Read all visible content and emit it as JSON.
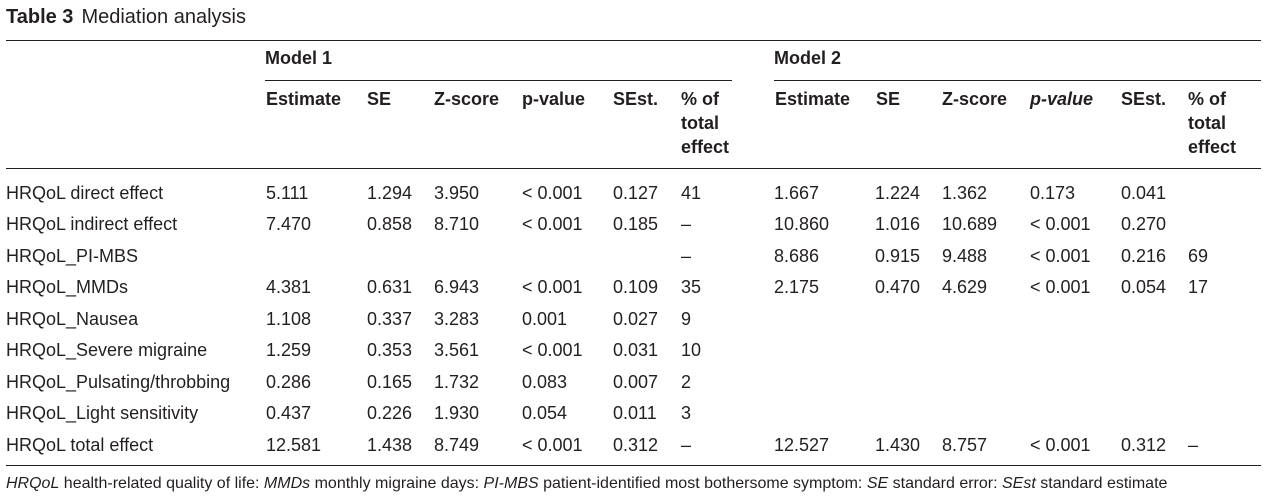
{
  "title": {
    "label": "Table 3",
    "name": "Mediation analysis"
  },
  "models": [
    "Model 1",
    "Model 2"
  ],
  "columns": {
    "estimate": "Estimate",
    "se": "SE",
    "z": "Z-score",
    "p1": "p-value",
    "p2": "p-value",
    "sest": "SEst.",
    "pct": "% of total effect"
  },
  "rows": [
    {
      "label": "HRQoL direct effect",
      "m1": [
        "5.111",
        "1.294",
        "3.950",
        "< 0.001",
        "0.127",
        "41"
      ],
      "m2": [
        "1.667",
        "1.224",
        "1.362",
        "0.173",
        "0.041",
        ""
      ]
    },
    {
      "label": "HRQoL indirect effect",
      "m1": [
        "7.470",
        "0.858",
        "8.710",
        "< 0.001",
        "0.185",
        "–"
      ],
      "m2": [
        "10.860",
        "1.016",
        "10.689",
        "< 0.001",
        "0.270",
        ""
      ]
    },
    {
      "label": "HRQoL_PI-MBS",
      "m1": [
        "",
        "",
        "",
        "",
        "",
        "–"
      ],
      "m2": [
        "8.686",
        "0.915",
        "9.488",
        "< 0.001",
        "0.216",
        "69"
      ]
    },
    {
      "label": "HRQoL_MMDs",
      "m1": [
        "4.381",
        "0.631",
        "6.943",
        "< 0.001",
        "0.109",
        "35"
      ],
      "m2": [
        "2.175",
        "0.470",
        "4.629",
        "< 0.001",
        "0.054",
        "17"
      ]
    },
    {
      "label": "HRQoL_Nausea",
      "m1": [
        "1.108",
        "0.337",
        "3.283",
        "0.001",
        "0.027",
        "9"
      ],
      "m2": [
        "",
        "",
        "",
        "",
        "",
        ""
      ]
    },
    {
      "label": "HRQoL_Severe migraine",
      "m1": [
        "1.259",
        "0.353",
        "3.561",
        "< 0.001",
        "0.031",
        "10"
      ],
      "m2": [
        "",
        "",
        "",
        "",
        "",
        ""
      ]
    },
    {
      "label": "HRQoL_Pulsating/throbbing",
      "m1": [
        "0.286",
        "0.165",
        "1.732",
        "0.083",
        "0.007",
        "2"
      ],
      "m2": [
        "",
        "",
        "",
        "",
        "",
        ""
      ]
    },
    {
      "label": "HRQoL_Light sensitivity",
      "m1": [
        "0.437",
        "0.226",
        "1.930",
        "0.054",
        "0.011",
        "3"
      ],
      "m2": [
        "",
        "",
        "",
        "",
        "",
        ""
      ]
    },
    {
      "label": "HRQoL total effect",
      "m1": [
        "12.581",
        "1.438",
        "8.749",
        "< 0.001",
        "0.312",
        "–"
      ],
      "m2": [
        "12.527",
        "1.430",
        "8.757",
        "< 0.001",
        "0.312",
        "–"
      ]
    }
  ],
  "footnote": [
    {
      "text": "HRQoL",
      "italic": true
    },
    {
      "text": " health-related quality of life: ",
      "italic": false
    },
    {
      "text": "MMDs",
      "italic": true
    },
    {
      "text": " monthly migraine days: ",
      "italic": false
    },
    {
      "text": "PI-MBS",
      "italic": true
    },
    {
      "text": " patient-identified most bothersome symptom: ",
      "italic": false
    },
    {
      "text": "SE",
      "italic": true
    },
    {
      "text": " standard error: ",
      "italic": false
    },
    {
      "text": "SEst",
      "italic": true
    },
    {
      "text": " standard estimate",
      "italic": false
    }
  ]
}
